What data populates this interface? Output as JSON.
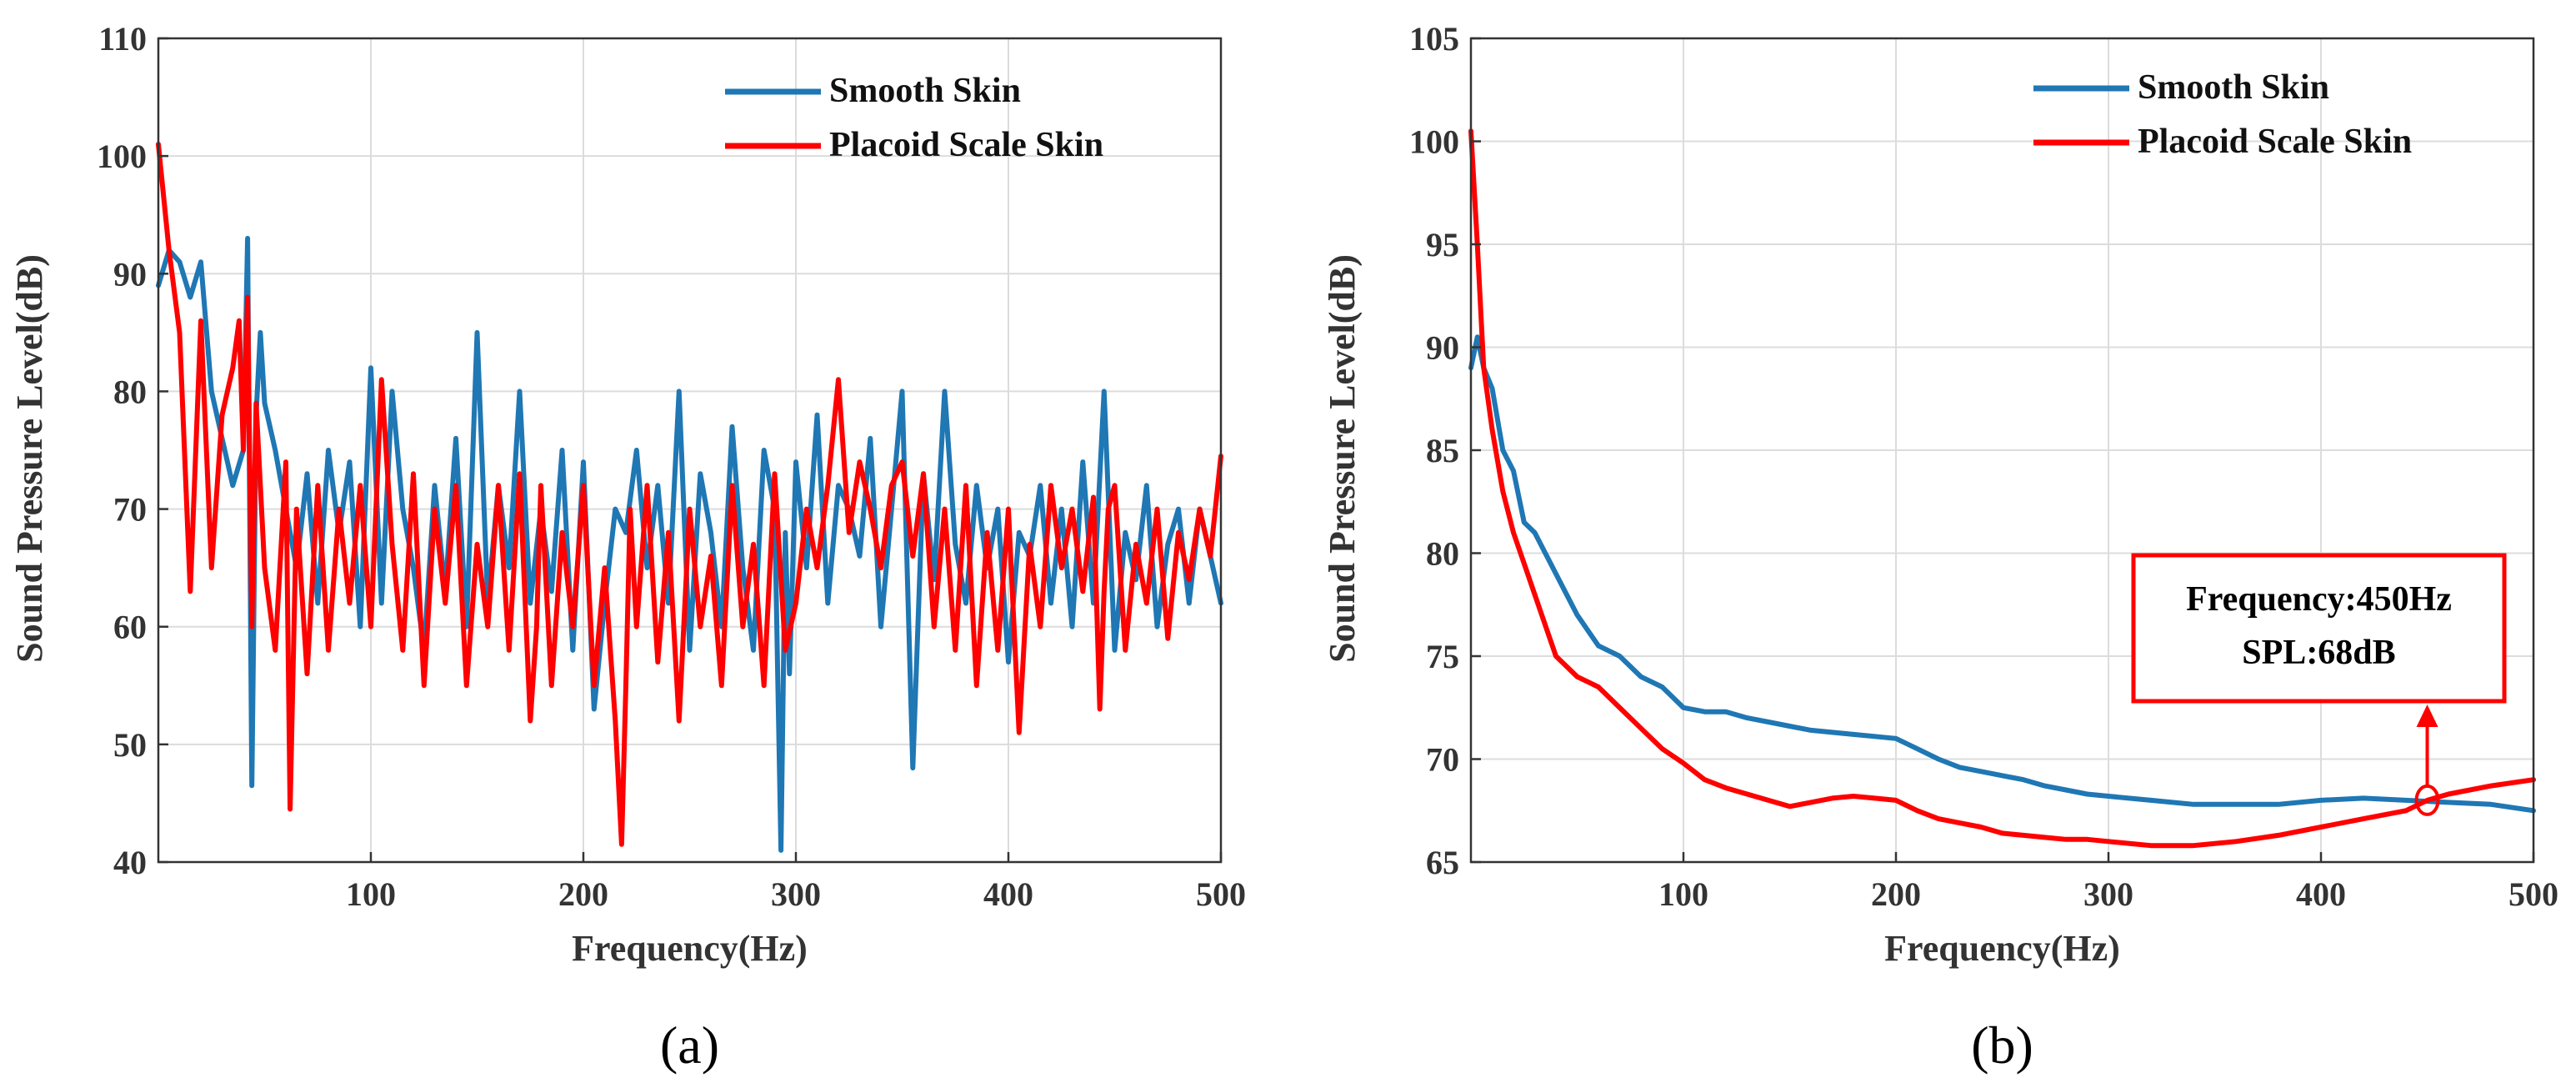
{
  "chart_data": [
    {
      "type": "line",
      "panel_label": "(a)",
      "xlabel": "Frequency(Hz)",
      "ylabel": "Sound Pressure Level(dB)",
      "xlim": [
        0,
        500
      ],
      "ylim": [
        40,
        110
      ],
      "xticks": [
        100,
        200,
        300,
        400,
        500
      ],
      "yticks": [
        40,
        50,
        60,
        70,
        80,
        90,
        100,
        110
      ],
      "grid": true,
      "legend_position": "top-right",
      "series": [
        {
          "name": "Smooth Skin",
          "color": "#1f77b4",
          "x": [
            0,
            5,
            10,
            15,
            20,
            25,
            30,
            35,
            40,
            42,
            44,
            46,
            48,
            50,
            55,
            60,
            65,
            70,
            75,
            80,
            85,
            90,
            95,
            100,
            105,
            110,
            115,
            120,
            125,
            130,
            135,
            140,
            145,
            150,
            155,
            160,
            165,
            170,
            175,
            180,
            185,
            190,
            195,
            200,
            205,
            210,
            215,
            220,
            225,
            230,
            235,
            240,
            245,
            250,
            255,
            260,
            265,
            270,
            275,
            280,
            285,
            290,
            293,
            295,
            297,
            300,
            305,
            310,
            315,
            320,
            325,
            330,
            335,
            340,
            345,
            350,
            355,
            360,
            365,
            370,
            375,
            380,
            385,
            390,
            395,
            400,
            405,
            410,
            415,
            420,
            425,
            430,
            435,
            440,
            445,
            450,
            455,
            460,
            465,
            470,
            475,
            480,
            485,
            490,
            495,
            500
          ],
          "values": [
            89,
            92,
            91,
            88,
            91,
            80,
            76,
            72,
            75,
            93,
            46.5,
            78,
            85,
            79,
            75,
            70,
            65,
            73,
            62,
            75,
            68,
            74,
            60,
            82,
            62,
            80,
            70,
            65,
            58,
            72,
            63,
            76,
            60,
            85,
            62,
            72,
            65,
            80,
            62,
            70,
            63,
            75,
            58,
            74,
            53,
            62,
            70,
            68,
            75,
            65,
            72,
            62,
            80,
            58,
            73,
            68,
            60,
            77,
            65,
            58,
            75,
            70,
            41,
            68,
            56,
            74,
            65,
            78,
            62,
            72,
            70,
            66,
            76,
            60,
            70,
            80,
            48,
            73,
            64,
            80,
            67,
            62,
            72,
            65,
            70,
            57,
            68,
            66,
            72,
            62,
            70,
            60,
            74,
            62,
            80,
            58,
            68,
            64,
            72,
            60,
            67,
            70,
            62,
            70,
            66,
            62
          ]
        },
        {
          "name": "Placoid Scale Skin",
          "color": "#ff0000",
          "x": [
            0,
            5,
            10,
            15,
            20,
            25,
            30,
            35,
            38,
            40,
            42,
            44,
            46,
            48,
            50,
            55,
            60,
            62,
            65,
            70,
            75,
            80,
            85,
            90,
            95,
            100,
            105,
            110,
            115,
            120,
            125,
            130,
            135,
            140,
            145,
            150,
            155,
            160,
            165,
            170,
            175,
            178,
            180,
            185,
            190,
            195,
            200,
            205,
            210,
            215,
            218,
            220,
            222,
            225,
            230,
            235,
            240,
            245,
            250,
            255,
            260,
            265,
            270,
            275,
            280,
            285,
            290,
            295,
            300,
            305,
            310,
            315,
            320,
            325,
            330,
            335,
            340,
            345,
            350,
            355,
            360,
            365,
            370,
            375,
            380,
            385,
            390,
            395,
            400,
            405,
            410,
            415,
            420,
            425,
            430,
            435,
            440,
            443,
            445,
            447,
            450,
            455,
            460,
            465,
            470,
            475,
            480,
            485,
            490,
            495,
            500
          ],
          "values": [
            101,
            92,
            85,
            63,
            86,
            65,
            78,
            82,
            86,
            75,
            88,
            60,
            79,
            72,
            65,
            58,
            74,
            44.5,
            70,
            56,
            72,
            58,
            70,
            62,
            72,
            60,
            81,
            67,
            58,
            73,
            55,
            70,
            62,
            72,
            55,
            67,
            60,
            72,
            58,
            73,
            52,
            60,
            72,
            55,
            68,
            60,
            72,
            55,
            65,
            52,
            41.5,
            55,
            70,
            60,
            72,
            57,
            68,
            52,
            70,
            60,
            66,
            55,
            72,
            60,
            67,
            55,
            73,
            58,
            62,
            70,
            65,
            72,
            81,
            68,
            74,
            70,
            65,
            72,
            74,
            66,
            73,
            60,
            70,
            58,
            72,
            55,
            68,
            58,
            70,
            51,
            67,
            60,
            72,
            65,
            70,
            63,
            71,
            53,
            63,
            70,
            72,
            58,
            67,
            62,
            70,
            59,
            68,
            64,
            70,
            66,
            74.5
          ]
        }
      ]
    },
    {
      "type": "line",
      "panel_label": "(b)",
      "xlabel": "Frequency(Hz)",
      "ylabel": "Sound Pressure Level(dB)",
      "xlim": [
        0,
        500
      ],
      "ylim": [
        65,
        105
      ],
      "xticks": [
        100,
        200,
        300,
        400,
        500
      ],
      "yticks": [
        65,
        70,
        75,
        80,
        85,
        90,
        95,
        100,
        105
      ],
      "grid": true,
      "legend_position": "top-right",
      "series": [
        {
          "name": "Smooth Skin",
          "color": "#1f77b4",
          "x": [
            0,
            3,
            6,
            10,
            15,
            20,
            25,
            30,
            40,
            50,
            60,
            70,
            80,
            90,
            100,
            110,
            120,
            130,
            140,
            150,
            160,
            170,
            180,
            190,
            200,
            210,
            220,
            230,
            240,
            250,
            260,
            270,
            280,
            290,
            300,
            320,
            340,
            360,
            380,
            400,
            420,
            440,
            460,
            480,
            500
          ],
          "values": [
            89,
            90.5,
            89,
            88,
            85,
            84,
            81.5,
            81,
            79,
            77,
            75.5,
            75,
            74,
            73.5,
            72.5,
            72.3,
            72.3,
            72,
            71.8,
            71.6,
            71.4,
            71.3,
            71.2,
            71.1,
            71,
            70.5,
            70,
            69.6,
            69.4,
            69.2,
            69,
            68.7,
            68.5,
            68.3,
            68.2,
            68,
            67.8,
            67.8,
            67.8,
            68,
            68.1,
            68,
            67.9,
            67.8,
            67.5
          ]
        },
        {
          "name": "Placoid Scale Skin",
          "color": "#ff0000",
          "x": [
            0,
            3,
            6,
            10,
            15,
            20,
            25,
            30,
            40,
            50,
            60,
            70,
            80,
            90,
            100,
            110,
            120,
            130,
            140,
            150,
            160,
            170,
            180,
            190,
            200,
            210,
            220,
            230,
            240,
            250,
            260,
            270,
            280,
            290,
            300,
            320,
            340,
            360,
            380,
            400,
            420,
            440,
            450,
            460,
            480,
            500
          ],
          "values": [
            100.5,
            95,
            89,
            86,
            83,
            81,
            79.5,
            78,
            75,
            74,
            73.5,
            72.5,
            71.5,
            70.5,
            69.8,
            69,
            68.6,
            68.3,
            68,
            67.7,
            67.9,
            68.1,
            68.2,
            68.1,
            68,
            67.5,
            67.1,
            66.9,
            66.7,
            66.4,
            66.3,
            66.2,
            66.1,
            66.1,
            66,
            65.8,
            65.8,
            66,
            66.3,
            66.7,
            67.1,
            67.5,
            68,
            68.3,
            68.7,
            69
          ]
        }
      ],
      "annotation": {
        "line1": "Frequency:450Hz",
        "line2": "SPL:68dB",
        "marker_x": 450,
        "marker_y": 68,
        "color": "#ff0000"
      }
    }
  ]
}
